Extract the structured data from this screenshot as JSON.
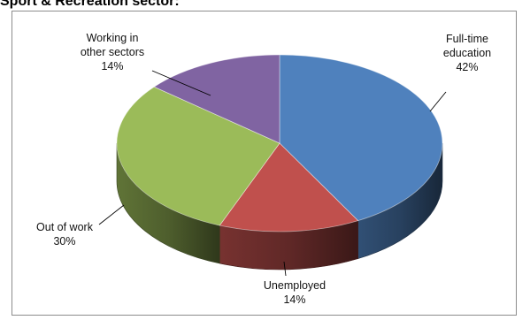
{
  "heading": "Sport & Recreation sector:",
  "chart_data": {
    "type": "pie",
    "style": "3d",
    "title": "",
    "slices": [
      {
        "name": "Full-time education",
        "label_lines": [
          "Full-time",
          "education"
        ],
        "pct_label": "42%",
        "value": 42,
        "color": "#4f81bd"
      },
      {
        "name": "Unemployed",
        "label_lines": [
          "Unemployed"
        ],
        "pct_label": "14%",
        "value": 14,
        "color": "#c0504d"
      },
      {
        "name": "Out of work",
        "label_lines": [
          "Out of work"
        ],
        "pct_label": "30%",
        "value": 30,
        "color": "#9bbb59"
      },
      {
        "name": "Working in other sectors",
        "label_lines": [
          "Working in",
          "other sectors"
        ],
        "pct_label": "14%",
        "value": 14,
        "color": "#8064a2"
      }
    ],
    "legend": "none",
    "data_labels": "outside with leader lines"
  }
}
